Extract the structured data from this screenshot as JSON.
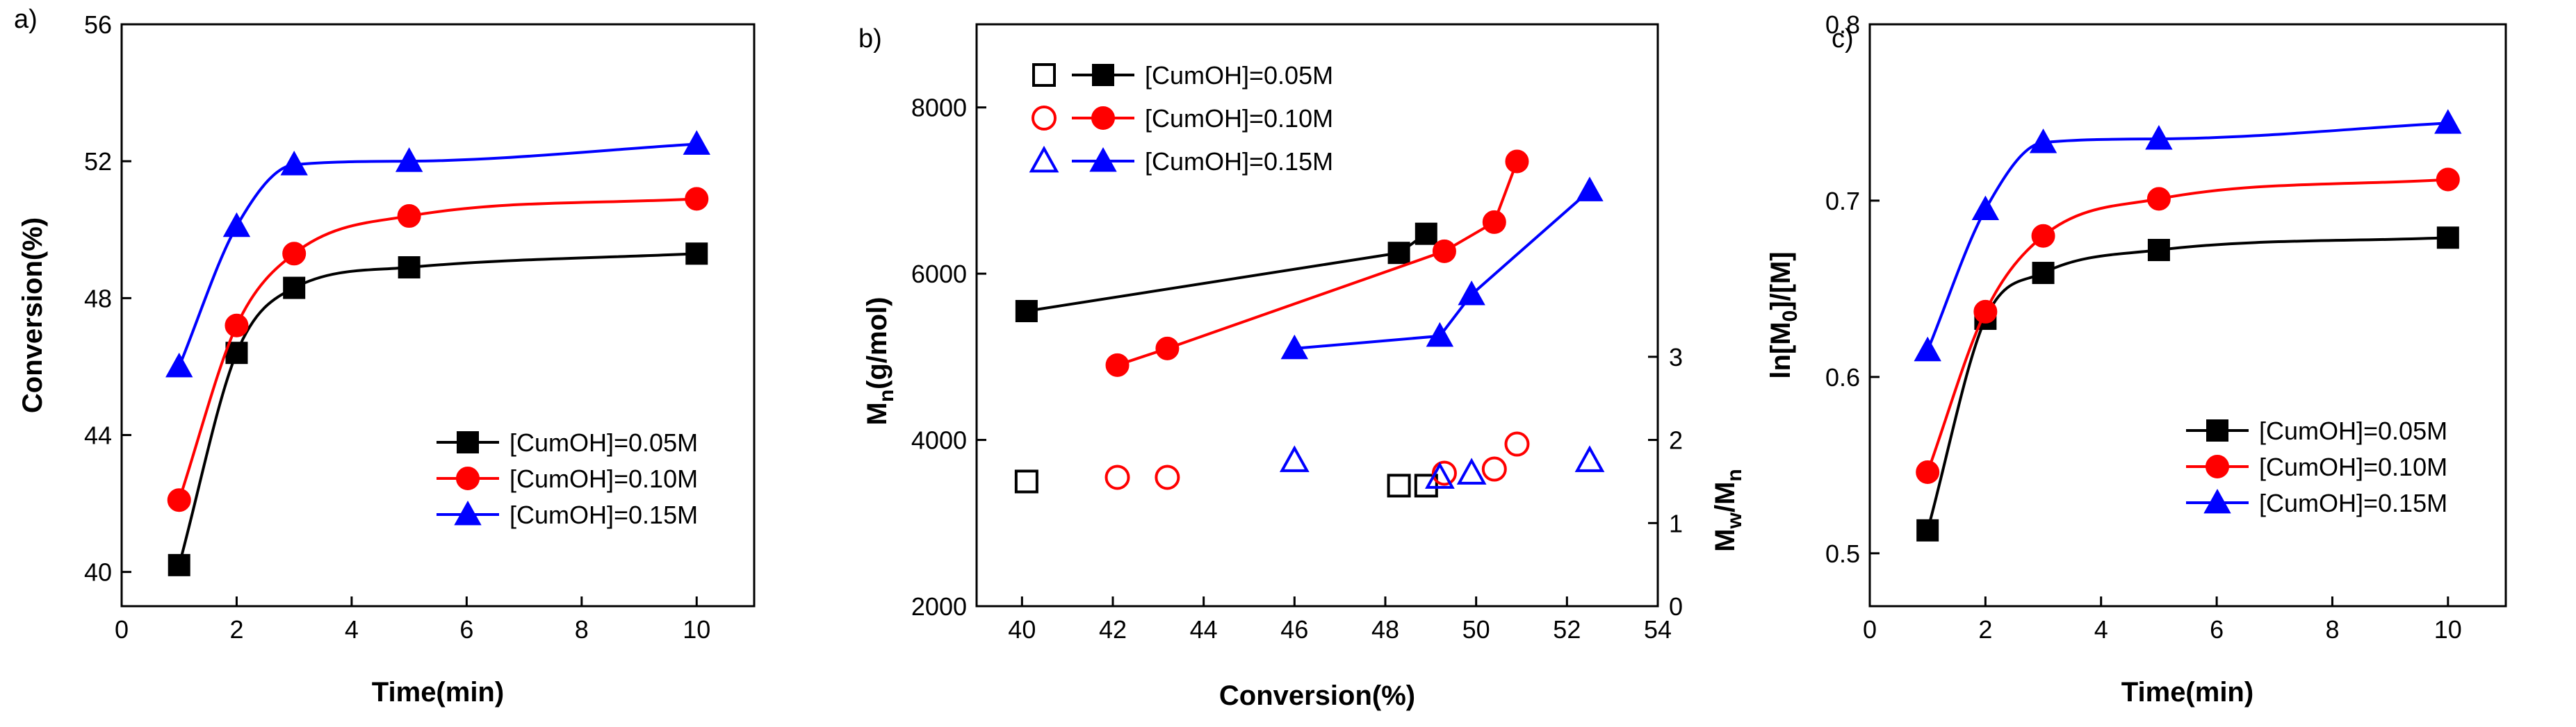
{
  "colors": {
    "black": "#000000",
    "red": "#ff0000",
    "blue": "#0000ff"
  },
  "chart_data": [
    {
      "type": "line",
      "panel_label": "a)",
      "title": "",
      "xlabel": "Time(min)",
      "ylabel": "Conversion(%)",
      "xlim": [
        0,
        11
      ],
      "ylim": [
        39,
        56
      ],
      "xticks": [
        "0",
        "2",
        "4",
        "6",
        "8",
        "10"
      ],
      "xtick_values": [
        0,
        2,
        4,
        6,
        8,
        10
      ],
      "yticks": [
        "40",
        "44",
        "48",
        "52",
        "56"
      ],
      "ytick_values": [
        40,
        44,
        48,
        52,
        56
      ],
      "legend_position": "bottom-right",
      "series": [
        {
          "name": "[CumOH]=0.05M",
          "color": "#000000",
          "marker": "square",
          "x": [
            1,
            2,
            3,
            5,
            10
          ],
          "y": [
            40.2,
            46.4,
            48.3,
            48.9,
            49.3
          ]
        },
        {
          "name": "[CumOH]=0.10M",
          "color": "#ff0000",
          "marker": "circle",
          "x": [
            1,
            2,
            3,
            5,
            10
          ],
          "y": [
            42.1,
            47.2,
            49.3,
            50.4,
            50.9
          ]
        },
        {
          "name": "[CumOH]=0.15M",
          "color": "#0000ff",
          "marker": "triangle",
          "x": [
            1,
            2,
            3,
            5,
            10
          ],
          "y": [
            46.0,
            50.1,
            51.9,
            52.0,
            52.5
          ]
        }
      ]
    },
    {
      "type": "scatter",
      "panel_label": "b)",
      "title": "",
      "xlabel": "Conversion(%)",
      "ylabel": "Mn(g/mol)",
      "ylabel_main": "M",
      "ylabel_sub": "n",
      "ylabel_rest": "(g/mol)",
      "y2label": "Mw/Mn",
      "y2label_a": "M",
      "y2label_a_sub": "w",
      "y2label_sep": "/M",
      "y2label_b_sub": "n",
      "xlim": [
        39,
        54
      ],
      "ylim": [
        2000,
        9000
      ],
      "y2lim": [
        0,
        7
      ],
      "xticks": [
        "40",
        "42",
        "44",
        "46",
        "48",
        "50",
        "52",
        "54"
      ],
      "xtick_values": [
        40,
        42,
        44,
        46,
        48,
        50,
        52,
        54
      ],
      "yticks": [
        "2000",
        "4000",
        "6000",
        "8000"
      ],
      "ytick_values": [
        2000,
        4000,
        6000,
        8000
      ],
      "y2ticks": [
        "0",
        "1",
        "2",
        "3"
      ],
      "y2tick_values": [
        0,
        1,
        2,
        3
      ],
      "legend_position": "top-left",
      "series": [
        {
          "name": "[CumOH]=0.05M",
          "color": "#000000",
          "marker": "square",
          "x": [
            40.1,
            48.3,
            48.9
          ],
          "Mn": [
            5550,
            6250,
            6480
          ],
          "PDI": [
            1.5,
            1.45,
            1.45
          ]
        },
        {
          "name": "[CumOH]=0.10M",
          "color": "#ff0000",
          "marker": "circle",
          "x": [
            42.1,
            43.2,
            49.3,
            50.4,
            50.9
          ],
          "Mn": [
            4900,
            5100,
            6270,
            6620,
            7350
          ],
          "PDI": [
            1.55,
            1.55,
            1.6,
            1.65,
            1.95
          ]
        },
        {
          "name": "[CumOH]=0.15M",
          "color": "#0000ff",
          "marker": "triangle",
          "x": [
            46.0,
            49.2,
            49.9,
            52.5
          ],
          "Mn": [
            5100,
            5250,
            5750,
            7000
          ],
          "PDI": [
            1.75,
            1.55,
            1.6,
            1.75
          ]
        }
      ]
    },
    {
      "type": "line",
      "panel_label": "c)",
      "title": "",
      "xlabel": "Time(min)",
      "ylabel": "ln[M0]/[M]",
      "ylabel_pre": "ln[M",
      "ylabel_sub": "0",
      "ylabel_post": "]/[M]",
      "xlim": [
        0,
        11
      ],
      "ylim": [
        0.47,
        0.8
      ],
      "xticks": [
        "0",
        "2",
        "4",
        "6",
        "8",
        "10"
      ],
      "xtick_values": [
        0,
        2,
        4,
        6,
        8,
        10
      ],
      "yticks": [
        "0.5",
        "0.6",
        "0.7",
        "0.8"
      ],
      "ytick_values": [
        0.5,
        0.6,
        0.7,
        0.8
      ],
      "legend_position": "bottom-right",
      "series": [
        {
          "name": "[CumOH]=0.05M",
          "color": "#000000",
          "marker": "square",
          "x": [
            1,
            2,
            3,
            5,
            10
          ],
          "y": [
            0.513,
            0.633,
            0.659,
            0.672,
            0.679
          ]
        },
        {
          "name": "[CumOH]=0.10M",
          "color": "#ff0000",
          "marker": "circle",
          "x": [
            1,
            2,
            3,
            5,
            10
          ],
          "y": [
            0.546,
            0.637,
            0.68,
            0.701,
            0.712
          ]
        },
        {
          "name": "[CumOH]=0.15M",
          "color": "#0000ff",
          "marker": "triangle",
          "x": [
            1,
            2,
            3,
            5,
            10
          ],
          "y": [
            0.615,
            0.695,
            0.733,
            0.735,
            0.744
          ]
        }
      ]
    }
  ]
}
